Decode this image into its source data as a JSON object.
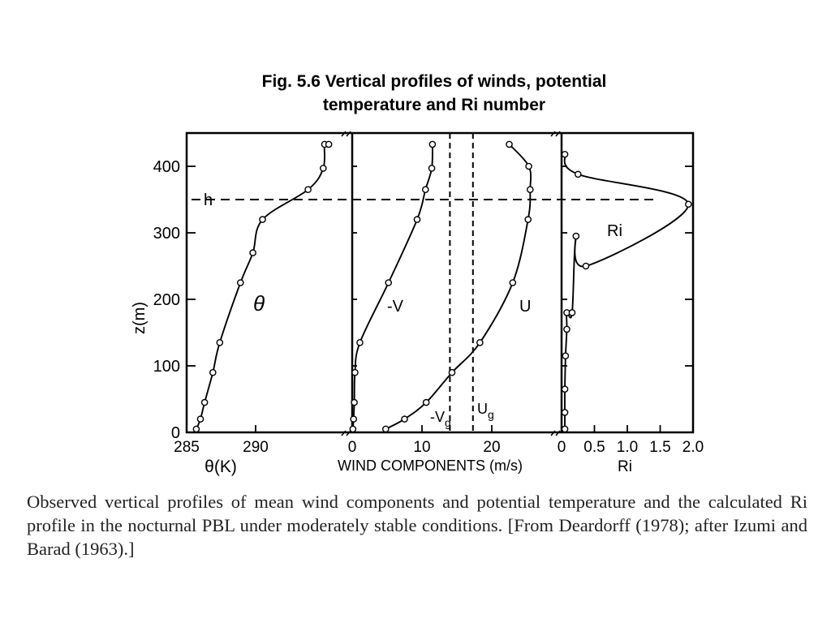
{
  "figure": {
    "title_line1": "Fig. 5.6   Vertical profiles of winds, potential",
    "title_line2": "temperature and Ri number",
    "caption": "Observed vertical profiles of mean wind components and potential temperature and the calculated Ri profile in the nocturnal PBL under moderately stable conditions. [From Deardorff (1978); after Izumi and Barad (1963).]"
  },
  "chart_data": [
    {
      "type": "line",
      "panel": "theta",
      "xlabel": "θ(K)",
      "ylabel": "z(m)",
      "xlim": [
        285,
        297
      ],
      "ylim": [
        0,
        450
      ],
      "x_ticks": [
        285,
        290
      ],
      "y_ticks": [
        0,
        100,
        200,
        300,
        400
      ],
      "series": [
        {
          "name": "θ",
          "x": [
            285.7,
            286.0,
            286.3,
            286.9,
            287.4,
            288.9,
            289.8,
            290.5,
            293.8,
            294.9,
            295.0,
            295.3
          ],
          "y": [
            5,
            20,
            45,
            90,
            135,
            225,
            270,
            320,
            365,
            397,
            433,
            433
          ]
        }
      ],
      "reference_lines": [
        {
          "label": "h",
          "y": 350
        }
      ]
    },
    {
      "type": "line",
      "panel": "wind",
      "xlabel": "WIND COMPONENTS (m/s)",
      "xlim": [
        0,
        30
      ],
      "ylim": [
        0,
        450
      ],
      "x_ticks": [
        0,
        10,
        20
      ],
      "series": [
        {
          "name": "-V",
          "x": [
            0.1,
            0.2,
            0.3,
            0.4,
            1.1,
            5.2,
            9.3,
            10.5,
            11.4,
            11.5
          ],
          "y": [
            5,
            20,
            45,
            90,
            135,
            225,
            320,
            365,
            397,
            433
          ]
        },
        {
          "name": "U",
          "x": [
            4.8,
            7.5,
            10.6,
            14.3,
            18.3,
            23.0,
            25.2,
            25.5,
            25.3,
            22.5
          ],
          "y": [
            5,
            20,
            45,
            90,
            135,
            225,
            320,
            365,
            400,
            433
          ]
        }
      ],
      "reference_lines": [
        {
          "label": "-Vg",
          "x": 14.0
        },
        {
          "label": "Ug",
          "x": 17.3
        }
      ]
    },
    {
      "type": "line",
      "panel": "ri",
      "xlabel": "Ri",
      "xlim": [
        0,
        2.0
      ],
      "ylim": [
        0,
        450
      ],
      "x_ticks": [
        0,
        0.5,
        1.0,
        1.5,
        2.0
      ],
      "x_tick_labels": [
        "0",
        "0.5",
        "1.0",
        "1.5",
        "2.0"
      ],
      "series": [
        {
          "name": "Ri",
          "x": [
            0.05,
            0.05,
            0.05,
            0.06,
            0.08,
            0.08,
            0.16,
            0.22,
            0.37,
            1.93,
            0.25,
            0.05
          ],
          "y": [
            5,
            30,
            65,
            115,
            155,
            180,
            180,
            295,
            250,
            343,
            388,
            418
          ]
        }
      ]
    }
  ],
  "labels": {
    "theta_curve": "θ",
    "v_curve": "-V",
    "u_curve": "U",
    "vg_main": "-V",
    "vg_sub": "g",
    "ug_main": "U",
    "ug_sub": "g",
    "ri_curve": "Ri",
    "h": "h",
    "theta_axis": "θ(K)",
    "wind_axis": "WIND COMPONENTS (m/s)",
    "ri_axis": "Ri",
    "z_axis": "z(m)"
  }
}
